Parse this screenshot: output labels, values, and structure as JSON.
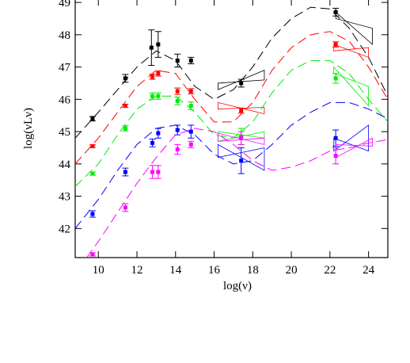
{
  "chart_data": {
    "type": "scatter",
    "x_label": "log(ν)",
    "y_label": "log(νLν)",
    "xlim": [
      8.8,
      25
    ],
    "ylim": [
      41.1,
      49.1
    ],
    "xticks": [
      10,
      12,
      14,
      16,
      18,
      20,
      22,
      24
    ],
    "yticks": [
      42,
      43,
      44,
      45,
      46,
      47,
      48,
      49
    ],
    "series": [
      {
        "color": "#000000",
        "x": [
          9.7,
          11.4,
          12.75,
          13.1,
          14.1,
          14.8,
          17.4,
          22.3
        ],
        "values": [
          45.4,
          46.65,
          47.6,
          47.7,
          47.2,
          47.2,
          46.5,
          48.7
        ],
        "errors": [
          0.07,
          0.12,
          0.55,
          0.4,
          0.2,
          0.1,
          0.12,
          0.12
        ],
        "model_x": [
          8.8,
          10,
          11,
          12,
          13,
          14,
          15,
          16,
          17,
          18,
          19,
          20,
          21,
          22,
          23,
          24,
          25
        ],
        "model_y": [
          44.8,
          45.6,
          46.3,
          47.0,
          47.5,
          47.2,
          46.4,
          46.0,
          46.3,
          47.0,
          47.9,
          48.5,
          48.85,
          48.8,
          48.2,
          47.3,
          46.1
        ],
        "bowties": [
          {
            "x": [
              16.2,
              18.6
            ],
            "upper": [
              46.5,
              46.9
            ],
            "lower": [
              46.3,
              46.6
            ]
          },
          {
            "x": [
              22.3,
              24.2
            ],
            "upper": [
              48.7,
              48.2
            ],
            "lower": [
              48.5,
              47.7
            ]
          }
        ]
      },
      {
        "color": "#ff0000",
        "x": [
          9.7,
          11.4,
          12.8,
          13.1,
          14.1,
          14.8,
          17.4,
          22.3
        ],
        "values": [
          44.55,
          45.8,
          46.7,
          46.8,
          46.25,
          46.25,
          45.65,
          47.7
        ],
        "errors": [
          0.04,
          0.05,
          0.08,
          0.08,
          0.1,
          0.08,
          0.08,
          0.08
        ],
        "model_x": [
          8.8,
          10,
          11,
          12,
          13,
          14,
          15,
          16,
          17,
          18,
          19,
          20,
          21,
          22,
          23,
          24,
          25
        ],
        "model_y": [
          44.0,
          44.8,
          45.6,
          46.4,
          46.9,
          46.8,
          46.0,
          45.3,
          45.3,
          45.9,
          46.9,
          47.6,
          48.0,
          48.1,
          47.8,
          47.0,
          46.0
        ],
        "bowties": [
          {
            "x": [
              16.2,
              18.6
            ],
            "upper": [
              45.9,
              45.75
            ],
            "lower": [
              45.7,
              45.55
            ]
          },
          {
            "x": [
              22.2,
              24
            ],
            "upper": [
              47.7,
              47.6
            ],
            "lower": [
              47.5,
              47.3
            ]
          }
        ]
      },
      {
        "color": "#00ee00",
        "x": [
          9.7,
          11.4,
          12.8,
          13.1,
          14.1,
          14.8,
          17.4,
          22.3
        ],
        "values": [
          43.7,
          45.1,
          46.1,
          46.1,
          45.95,
          45.8,
          44.85,
          46.65
        ],
        "errors": [
          0.05,
          0.08,
          0.1,
          0.1,
          0.12,
          0.12,
          0.25,
          0.15
        ],
        "model_x": [
          8.8,
          10,
          11,
          12,
          13,
          14,
          15,
          16,
          17,
          18,
          19,
          20,
          21,
          22,
          23,
          24,
          25
        ],
        "model_y": [
          43.3,
          44.0,
          44.9,
          45.7,
          46.1,
          46.1,
          45.6,
          44.9,
          44.8,
          45.3,
          46.2,
          46.9,
          47.2,
          47.2,
          46.8,
          46.0,
          45.3
        ],
        "bowties": [
          {
            "x": [
              16.2,
              18.6
            ],
            "upper": [
              45.0,
              45.0
            ],
            "lower": [
              44.7,
              44.8
            ]
          },
          {
            "x": [
              22.2,
              24
            ],
            "upper": [
              47.0,
              46.4
            ],
            "lower": [
              46.8,
              45.8
            ]
          }
        ]
      },
      {
        "color": "#0000ff",
        "x": [
          9.7,
          11.4,
          12.8,
          13.1,
          14.1,
          14.8,
          17.4,
          22.3
        ],
        "values": [
          42.45,
          43.75,
          44.65,
          44.95,
          45.05,
          45.0,
          44.1,
          44.8
        ],
        "errors": [
          0.1,
          0.12,
          0.12,
          0.15,
          0.15,
          0.2,
          0.4,
          0.25
        ],
        "model_x": [
          8.8,
          10,
          11,
          12,
          13,
          14,
          15,
          16,
          17,
          18,
          19,
          20,
          21,
          22,
          23,
          24,
          25
        ],
        "model_y": [
          42.0,
          42.9,
          43.8,
          44.6,
          45.1,
          45.2,
          44.9,
          44.3,
          44.0,
          44.1,
          44.6,
          45.2,
          45.6,
          45.9,
          45.9,
          45.7,
          45.4
        ],
        "bowties": [
          {
            "x": [
              16.2,
              18.6
            ],
            "upper": [
              44.6,
              44.5
            ],
            "lower": [
              44.2,
              43.8
            ]
          },
          {
            "x": [
              22.2,
              24
            ],
            "upper": [
              44.8,
              45.2
            ],
            "lower": [
              44.4,
              44.4
            ]
          }
        ]
      },
      {
        "color": "#ff00ff",
        "x": [
          9.7,
          11.4,
          12.8,
          13.1,
          14.1,
          14.8,
          17.4,
          22.3
        ],
        "values": [
          41.2,
          42.65,
          43.75,
          43.75,
          44.45,
          44.6,
          44.8,
          44.25
        ],
        "errors": [
          0.05,
          0.12,
          0.2,
          0.2,
          0.15,
          0.1,
          0.2,
          0.25
        ],
        "model_x": [
          9.4,
          10,
          11,
          12,
          13,
          14,
          15,
          16,
          17,
          18,
          19,
          20,
          21,
          22,
          23,
          24,
          25
        ],
        "model_y": [
          41.1,
          41.6,
          42.5,
          43.4,
          44.2,
          44.9,
          45.1,
          45.0,
          44.6,
          44.1,
          43.8,
          43.9,
          44.1,
          44.4,
          44.5,
          44.65,
          44.75
        ],
        "bowties": [
          {
            "x": [
              16.2,
              18.6
            ],
            "upper": [
              44.95,
              44.8
            ],
            "lower": [
              44.7,
              44.6
            ]
          },
          {
            "x": [
              22.3,
              24.2
            ],
            "upper": [
              44.6,
              44.8
            ],
            "lower": [
              44.2,
              44.55
            ]
          }
        ]
      }
    ]
  }
}
